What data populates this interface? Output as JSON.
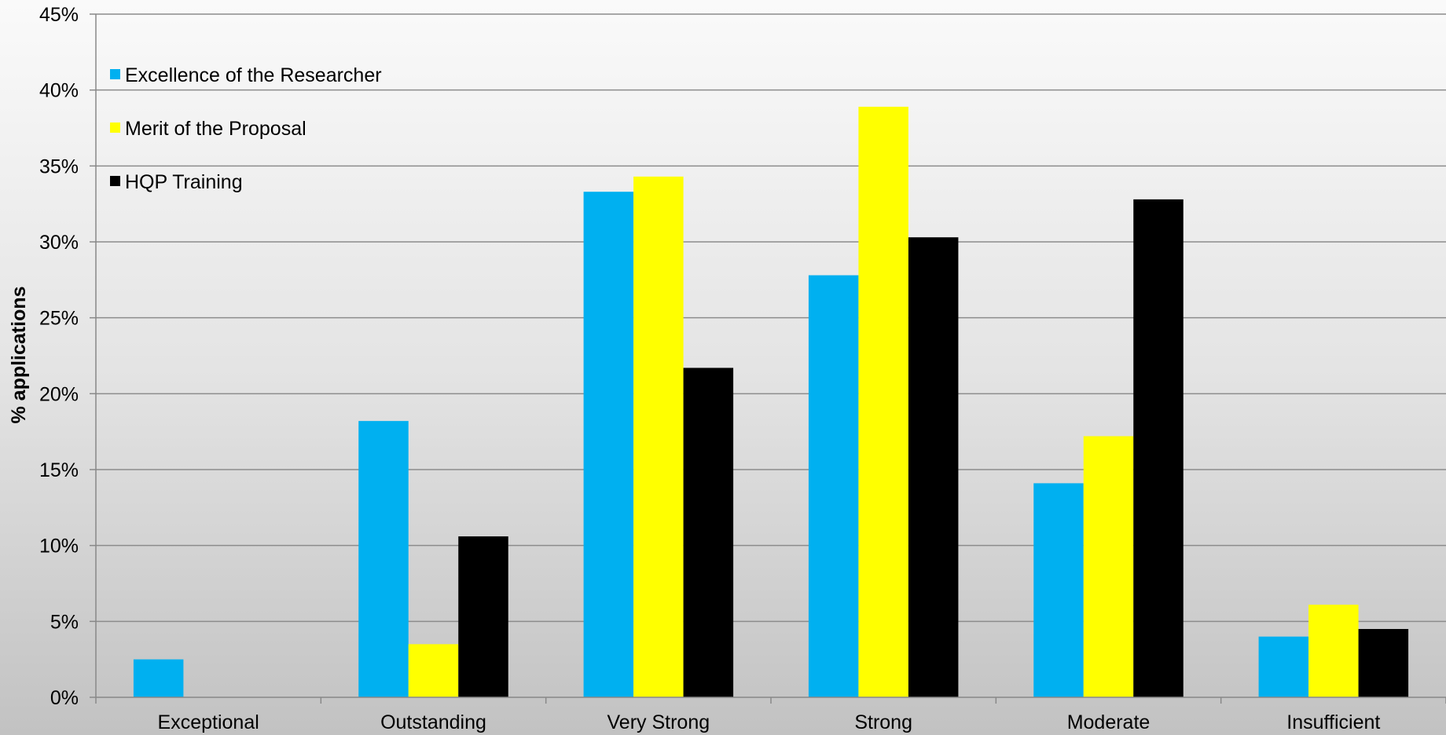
{
  "chart_data": {
    "type": "bar",
    "title": "",
    "xlabel": "",
    "ylabel": "% applications",
    "ylim": [
      0,
      45
    ],
    "yticks": [
      "0%",
      "5%",
      "10%",
      "15%",
      "20%",
      "25%",
      "30%",
      "35%",
      "40%",
      "45%"
    ],
    "grid": true,
    "legend_position": "top-left",
    "categories": [
      "Exceptional",
      "Outstanding",
      "Very Strong",
      "Strong",
      "Moderate",
      "Insufficient"
    ],
    "series": [
      {
        "name": "Excellence of the Researcher",
        "color": "#00b0f0",
        "values": [
          2.5,
          18.2,
          33.3,
          27.8,
          14.1,
          4.0
        ]
      },
      {
        "name": "Merit of the Proposal",
        "color": "#ffff00",
        "values": [
          0,
          3.5,
          34.3,
          38.9,
          17.2,
          6.1
        ]
      },
      {
        "name": "HQP Training",
        "color": "#000000",
        "values": [
          0,
          10.6,
          21.7,
          30.3,
          32.8,
          4.5
        ]
      }
    ]
  }
}
